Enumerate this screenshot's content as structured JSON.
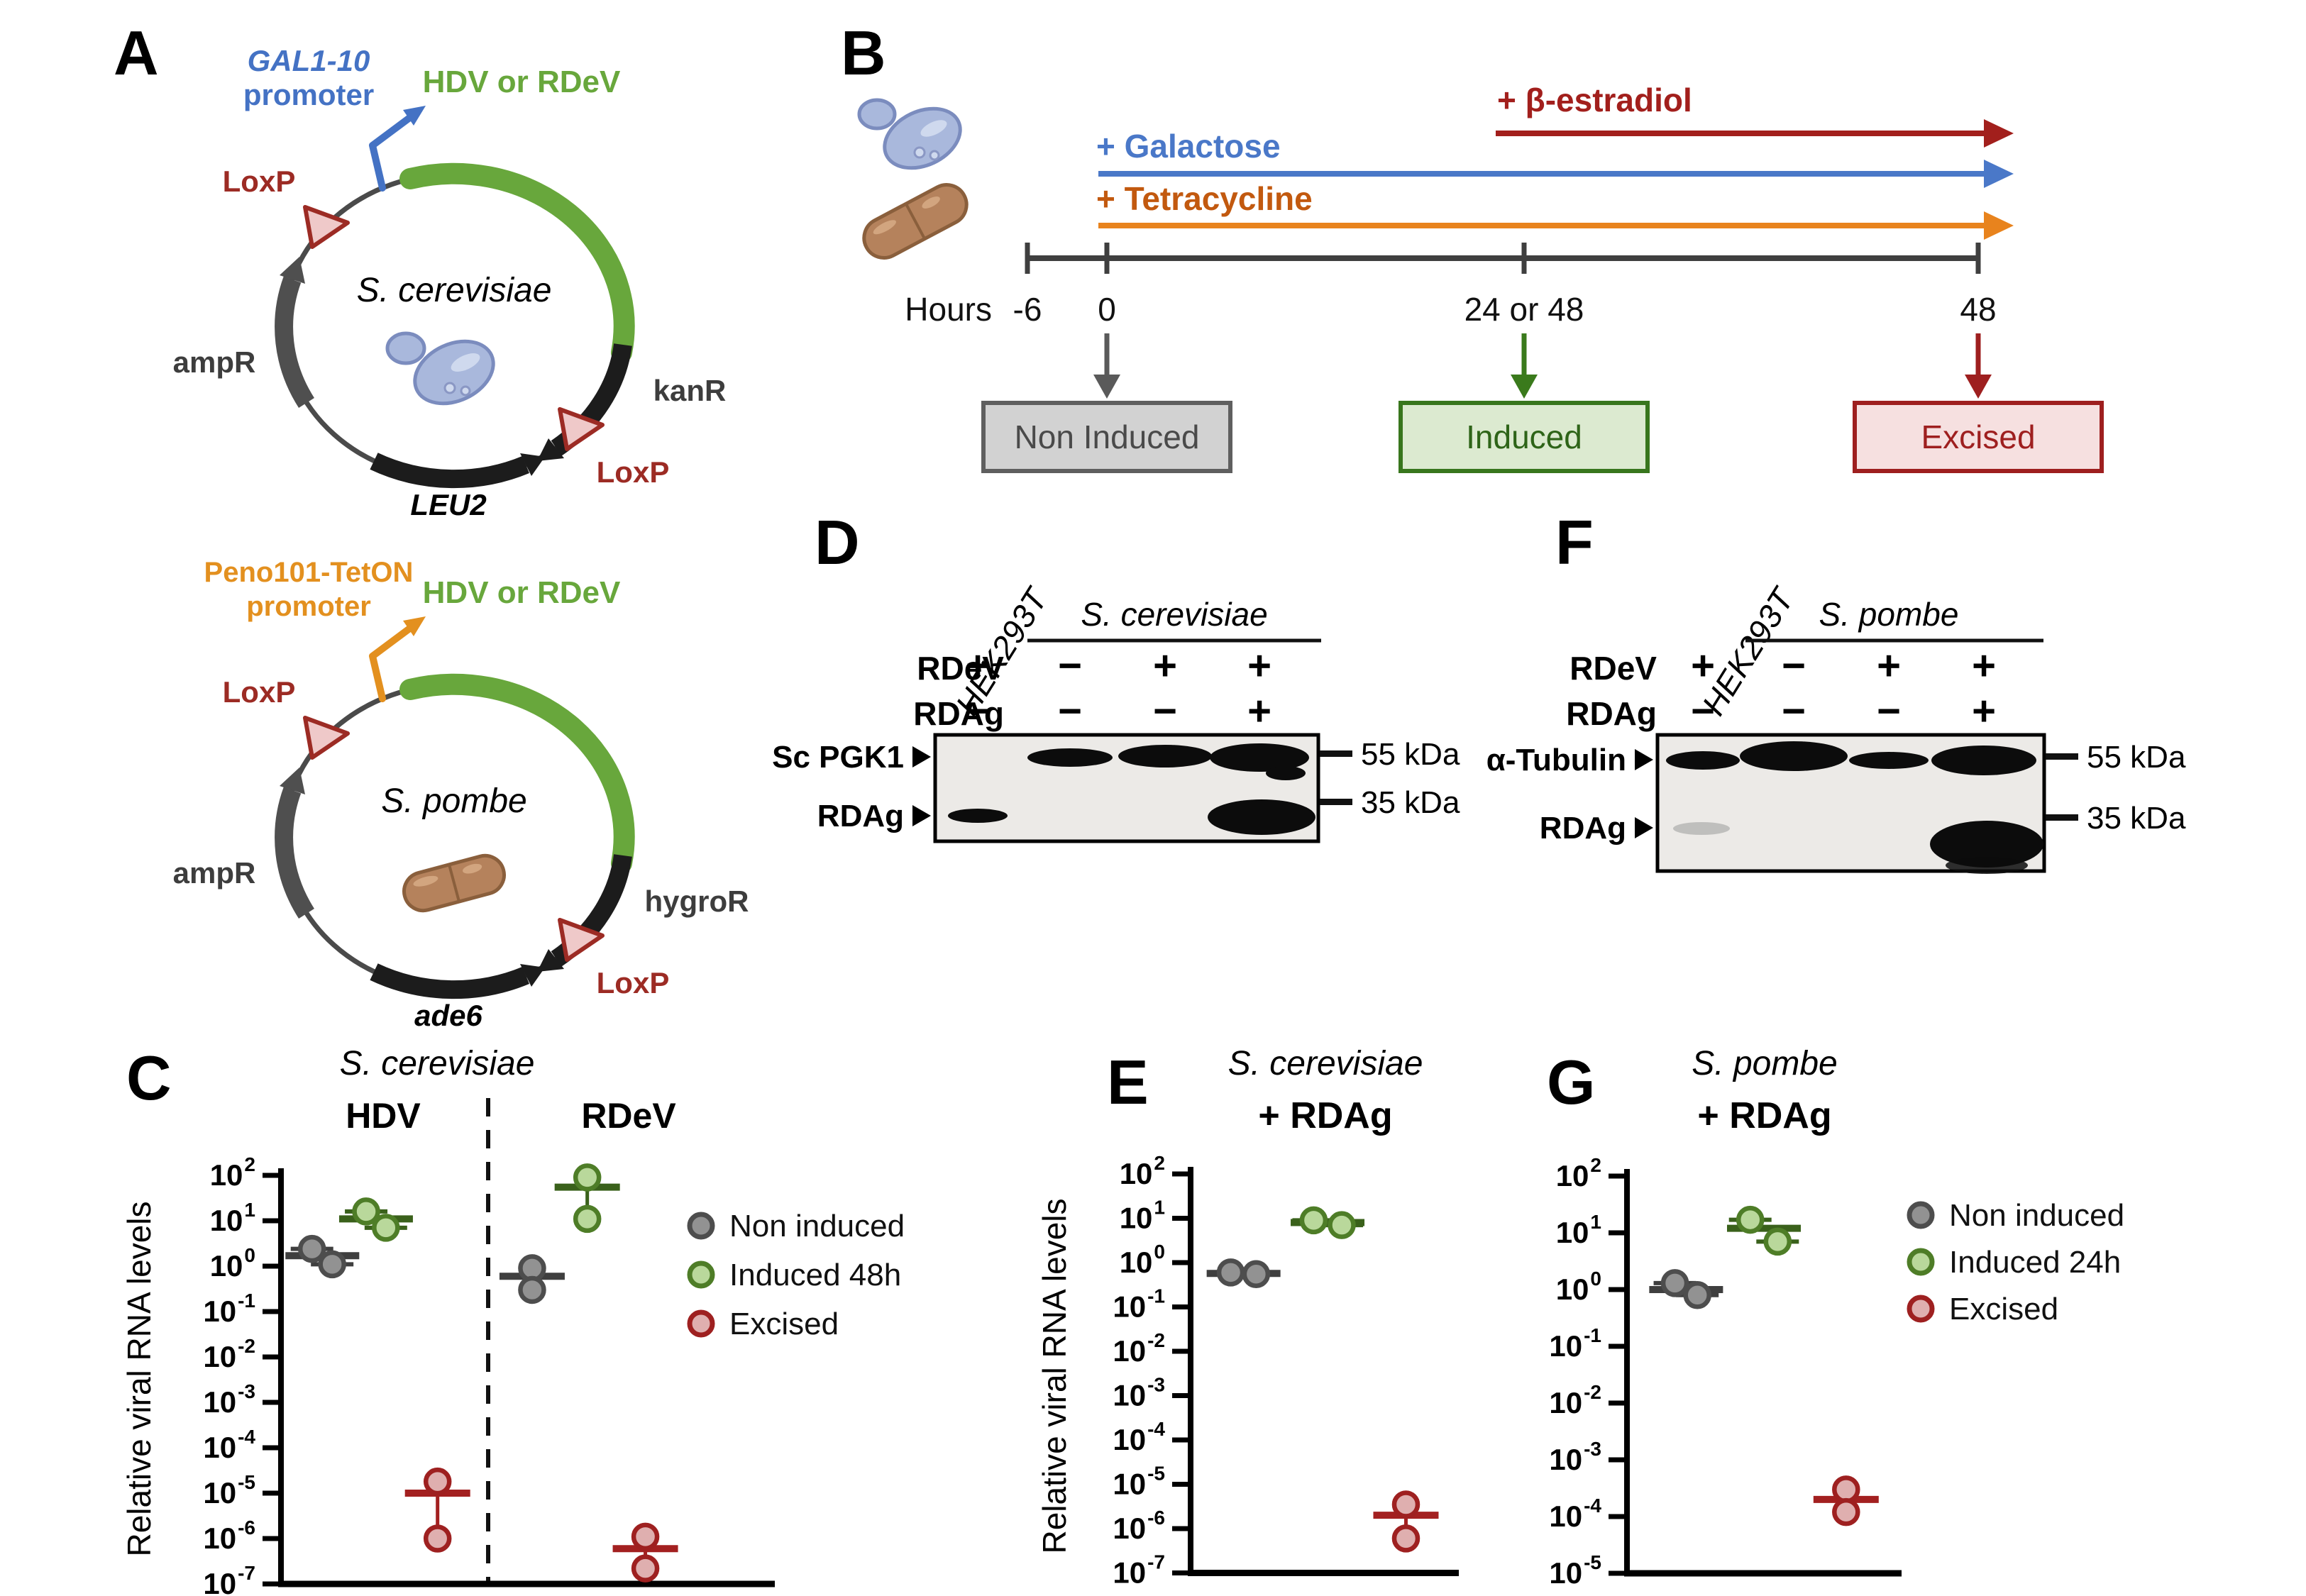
{
  "colors": {
    "insert_green": "#68a73c",
    "promoter_blue": "#4472c4",
    "promoter_orange": "#e3901f",
    "loxp_fill": "#efc9c9",
    "loxp_stroke": "#9c2b24",
    "galactose_blue": "#4a78c8",
    "tetracycline_text": "#c2590f",
    "tetracycline_line": "#e8831d",
    "estradiol_red": "#a21f1c",
    "box_gray_fill": "#d2d2d2",
    "box_gray_border": "#5f5f5f",
    "box_green_fill": "#dcead0",
    "box_green_border": "#38761d",
    "box_red_fill": "#f6e0e0",
    "box_red_border": "#9e1f1f"
  },
  "panels": {
    "A": {
      "letter": "A",
      "top": {
        "promoter_name": "GAL1-10",
        "promoter_word": "promoter",
        "promoter_color": "#4472c4",
        "insert_label": "HDV or RDeV",
        "insert_color": "#68a73c",
        "loxp1": "LoxP",
        "loxp2": "LoxP",
        "right_marker": "kanR",
        "left_marker": "ampR",
        "bottom_marker": "LEU2",
        "species": "S. cerevisiae"
      },
      "bottom": {
        "promoter_name": "Peno101-TetON",
        "promoter_word": "promoter",
        "promoter_color": "#e3901f",
        "insert_label": "HDV or RDeV",
        "insert_color": "#68a73c",
        "loxp1": "LoxP",
        "loxp2": "LoxP",
        "right_marker": "hygroR",
        "left_marker": "ampR",
        "bottom_marker": "ade6",
        "species": "S. pombe"
      }
    },
    "B": {
      "letter": "B",
      "estradiol": "+ β-estradiol",
      "galactose": "+ Galactose",
      "tetracycline": "+ Tetracycline",
      "hours": "Hours",
      "tick_labels": [
        "-6",
        "0",
        "24 or 48",
        "48"
      ],
      "box_non": "Non Induced",
      "box_ind": "Induced",
      "box_exc": "Excised"
    },
    "D": {
      "letter": "D",
      "cell_line": "HEK293T",
      "species": "S. cerevisiae",
      "row1_label": "RDeV",
      "row1": [
        "+",
        "−",
        "+",
        "+"
      ],
      "row2_label": "RDAg",
      "row2": [
        "−",
        "−",
        "−",
        "+"
      ],
      "band1_label": "Sc PGK1",
      "band2_label": "RDAg",
      "marker1": "55 kDa",
      "marker2": "35 kDa"
    },
    "F": {
      "letter": "F",
      "cell_line": "HEK293T",
      "species": "S. pombe",
      "row1_label": "RDeV",
      "row1": [
        "+",
        "−",
        "+",
        "+"
      ],
      "row2_label": "RDAg",
      "row2": [
        "−",
        "−",
        "−",
        "+"
      ],
      "band1_label": "α-Tubulin",
      "band2_label": "RDAg",
      "marker1": "55 kDa",
      "marker2": "35 kDa"
    },
    "C": {
      "letter": "C"
    },
    "E": {
      "letter": "E"
    },
    "G": {
      "letter": "G"
    }
  },
  "marker_colors": {
    "non": {
      "fill": "#929292",
      "stroke": "#4d4d4d",
      "mean": "#3f3f3f"
    },
    "ind": {
      "fill": "#b9d89b",
      "stroke": "#4e7d27",
      "mean": "#3a611b"
    },
    "exc": {
      "fill": "#dfafaf",
      "stroke": "#9e2020",
      "mean": "#a32020"
    }
  },
  "chart_data": [
    {
      "id": "C",
      "type": "scatter",
      "yscale": "log10",
      "title": "S. cerevisiae",
      "section_labels": [
        "HDV",
        "RDeV"
      ],
      "ylabel": "Relative viral RNA levels",
      "ylim_exp": [
        2,
        -7
      ],
      "legend": [
        "Non induced",
        "Induced 48h",
        "Excised"
      ],
      "groups": [
        {
          "name": "Non induced",
          "section": "HDV",
          "color": "non",
          "points": [
            [
              0.063,
              2.4
            ],
            [
              0.104,
              1.1
            ]
          ],
          "mean_x": 0.084,
          "mean": 1.7
        },
        {
          "name": "Induced 48h",
          "section": "HDV",
          "color": "ind",
          "points": [
            [
              0.173,
              16
            ],
            [
              0.213,
              7
            ]
          ],
          "mean_x": 0.193,
          "mean": 11
        },
        {
          "name": "Excised",
          "section": "HDV",
          "color": "exc",
          "points": [
            [
              0.318,
              1.8e-05
            ],
            [
              0.318,
              1e-06
            ]
          ],
          "mean_x": 0.318,
          "mean": 1e-05
        },
        {
          "name": "Non induced",
          "section": "RDeV",
          "color": "non",
          "points": [
            [
              0.51,
              0.9
            ],
            [
              0.51,
              0.3
            ]
          ],
          "mean_x": 0.51,
          "mean": 0.6
        },
        {
          "name": "Induced 48h",
          "section": "RDeV",
          "color": "ind",
          "points": [
            [
              0.622,
              90
            ],
            [
              0.622,
              11
            ]
          ],
          "mean_x": 0.622,
          "mean": 55
        },
        {
          "name": "Excised",
          "section": "RDeV",
          "color": "exc",
          "points": [
            [
              0.74,
              1.1e-06
            ],
            [
              0.74,
              2.2e-07
            ]
          ],
          "mean_x": 0.74,
          "mean": 6e-07
        }
      ]
    },
    {
      "id": "E",
      "type": "scatter",
      "yscale": "log10",
      "title": "S. cerevisiae",
      "subtitle": "+ RDAg",
      "ylabel": "Relative viral RNA levels",
      "ylim_exp": [
        2,
        -7
      ],
      "legend": [],
      "groups": [
        {
          "name": "Non induced",
          "color": "non",
          "points": [
            [
              0.15,
              0.6
            ],
            [
              0.245,
              0.55
            ]
          ],
          "mean_x": 0.198,
          "mean": 0.57
        },
        {
          "name": "Induced 48h",
          "color": "ind",
          "points": [
            [
              0.46,
              9
            ],
            [
              0.565,
              7
            ]
          ],
          "mean_x": 0.512,
          "mean": 8
        },
        {
          "name": "Excised",
          "color": "exc",
          "points": [
            [
              0.805,
              3.5e-06
            ],
            [
              0.805,
              6e-07
            ]
          ],
          "mean_x": 0.805,
          "mean": 2e-06
        }
      ]
    },
    {
      "id": "G",
      "type": "scatter",
      "yscale": "log10",
      "title": "S. pombe",
      "subtitle": "+ RDAg",
      "ylabel": "",
      "ylim_exp": [
        2,
        -5
      ],
      "legend": [
        "Non induced",
        "Induced 24h",
        "Excised"
      ],
      "groups": [
        {
          "name": "Non induced",
          "color": "non",
          "points": [
            [
              0.175,
              1.3
            ],
            [
              0.257,
              0.8
            ]
          ],
          "mean_x": 0.216,
          "mean": 1.0
        },
        {
          "name": "Induced 24h",
          "color": "ind",
          "points": [
            [
              0.45,
              17
            ],
            [
              0.55,
              7
            ]
          ],
          "mean_x": 0.5,
          "mean": 12
        },
        {
          "name": "Excised",
          "color": "exc",
          "points": [
            [
              0.8,
              0.0003
            ],
            [
              0.8,
              0.00012
            ]
          ],
          "mean_x": 0.8,
          "mean": 0.0002
        }
      ]
    }
  ]
}
